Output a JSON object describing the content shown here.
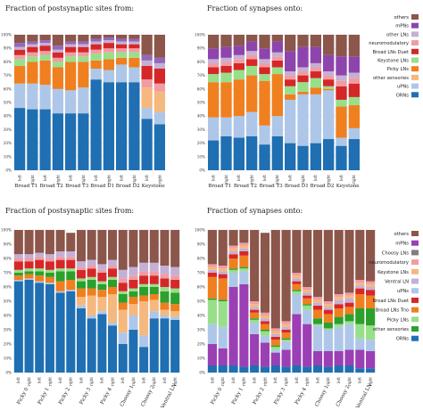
{
  "chart_data": [
    {
      "type": "bar",
      "stacked": true,
      "title": "Fraction of postsynaptic sites from:",
      "y_ticks": [
        "0%",
        "10%",
        "20%",
        "30%",
        "40%",
        "50%",
        "60%",
        "70%",
        "80%",
        "90%",
        "100%"
      ],
      "ylim": [
        0,
        100
      ],
      "groups": [
        "Broad T1",
        "Broad T2",
        "Broad T3",
        "Broad D1",
        "Broad D2",
        "Keystone"
      ],
      "bar_labels": [
        "left",
        "right",
        "left",
        "right",
        "left",
        "right",
        "left",
        "right",
        "left",
        "right",
        "left",
        "right"
      ],
      "legend": null,
      "series": [
        {
          "name": "ORNs",
          "color": "#1f6fb2",
          "values": [
            46,
            45,
            45,
            42,
            42,
            42,
            67,
            65,
            65,
            65,
            38,
            34
          ]
        },
        {
          "name": "uPNs",
          "color": "#aec7e8",
          "values": [
            18,
            19,
            18,
            18,
            17,
            19,
            8,
            9,
            13,
            11,
            8,
            9
          ]
        },
        {
          "name": "other sensories",
          "color": "#f5b87e",
          "values": [
            0,
            0,
            0,
            0,
            0,
            0,
            0,
            0,
            0,
            0,
            15,
            15
          ]
        },
        {
          "name": "Picky LNs",
          "color": "#f07f1f",
          "values": [
            13,
            16,
            18,
            16,
            21,
            19,
            6,
            8,
            5,
            7,
            0,
            0
          ]
        },
        {
          "name": "Keystone LNs",
          "color": "#98df8a",
          "values": [
            5,
            4,
            4,
            4,
            4,
            4,
            5,
            5,
            4,
            4,
            0,
            0
          ]
        },
        {
          "name": "neuromodulatory",
          "color": "#f19ca2",
          "values": [
            3,
            3,
            3,
            3,
            3,
            3,
            3,
            3,
            3,
            3,
            6,
            6
          ]
        },
        {
          "name": "Broad LNs Duet",
          "color": "#d62728",
          "values": [
            4,
            4,
            4,
            4,
            4,
            4,
            4,
            4,
            3,
            3,
            10,
            11
          ]
        },
        {
          "name": "Broad LNs Trio",
          "color": "#c5b0d5",
          "values": [
            2,
            2,
            2,
            2,
            2,
            2,
            2,
            2,
            2,
            2,
            4,
            4
          ]
        },
        {
          "name": "other LNs",
          "color": "#9467bd",
          "values": [
            3,
            2,
            2,
            3,
            2,
            2,
            2,
            2,
            2,
            2,
            4,
            4
          ]
        },
        {
          "name": "others",
          "color": "#8c564b",
          "values": [
            6,
            5,
            4,
            8,
            5,
            5,
            3,
            2,
            3,
            3,
            15,
            17
          ]
        }
      ]
    },
    {
      "type": "bar",
      "stacked": true,
      "title": "Fraction of synapses onto:",
      "y_ticks": [
        "0%",
        "10%",
        "20%",
        "30%",
        "40%",
        "50%",
        "60%",
        "70%",
        "80%",
        "90%",
        "100%"
      ],
      "ylim": [
        0,
        100
      ],
      "groups": [
        "Broad T1",
        "Broad T2",
        "Broad T3",
        "Broad D1",
        "Broad D2",
        "Keystone"
      ],
      "bar_labels": [
        "left",
        "right",
        "left",
        "right",
        "left",
        "right",
        "left",
        "right",
        "left",
        "right",
        "left",
        "right"
      ],
      "legend": [
        "others",
        "mPNs",
        "other LNs",
        "neuromodulatory",
        "Broad LNs Duet",
        "Keystone LNs",
        "Picky LNs",
        "other sensories",
        "uPNs",
        "ORNs"
      ],
      "series": [
        {
          "name": "ORNs",
          "color": "#1f6fb2",
          "values": [
            22,
            25,
            24,
            25,
            19,
            25,
            20,
            18,
            20,
            23,
            18,
            23
          ]
        },
        {
          "name": "uPNs",
          "color": "#aec7e8",
          "values": [
            17,
            14,
            16,
            18,
            14,
            15,
            32,
            38,
            36,
            36,
            6,
            8
          ]
        },
        {
          "name": "other sensories",
          "color": "#f5b87e",
          "values": [
            0,
            0,
            0,
            0,
            0,
            0,
            0,
            0,
            0,
            0,
            0,
            0
          ]
        },
        {
          "name": "Picky LNs",
          "color": "#f07f1f",
          "values": [
            26,
            26,
            27,
            27,
            33,
            31,
            4,
            2,
            5,
            1,
            23,
            17
          ]
        },
        {
          "name": "Keystone LNs",
          "color": "#98df8a",
          "values": [
            6,
            7,
            7,
            7,
            5,
            5,
            6,
            7,
            7,
            2,
            5,
            6
          ]
        },
        {
          "name": "Broad LNs Duet",
          "color": "#d62728",
          "values": [
            5,
            5,
            5,
            5,
            5,
            5,
            5,
            5,
            5,
            5,
            10,
            10
          ]
        },
        {
          "name": "neuromodulatory",
          "color": "#f19ca2",
          "values": [
            3,
            3,
            3,
            3,
            3,
            3,
            3,
            3,
            3,
            3,
            4,
            4
          ]
        },
        {
          "name": "other LNs",
          "color": "#c5b0d5",
          "values": [
            3,
            3,
            3,
            3,
            3,
            3,
            3,
            3,
            3,
            3,
            4,
            4
          ]
        },
        {
          "name": "mPNs",
          "color": "#8e44ad",
          "values": [
            8,
            8,
            7,
            7,
            8,
            8,
            15,
            15,
            12,
            12,
            14,
            12
          ]
        },
        {
          "name": "others",
          "color": "#8c564b",
          "values": [
            10,
            9,
            8,
            5,
            10,
            5,
            12,
            9,
            9,
            15,
            16,
            16
          ]
        }
      ]
    },
    {
      "type": "bar",
      "stacked": true,
      "title": "Fraction of postsynaptic sites from:",
      "y_ticks": [
        "0%",
        "10%",
        "20%",
        "30%",
        "40%",
        "50%",
        "60%",
        "70%",
        "80%",
        "90%",
        "100%"
      ],
      "ylim": [
        0,
        100
      ],
      "groups": [
        "Picky 0",
        "Picky 1",
        "Picky 2",
        "Picky 3",
        "Picky 4",
        "Choosy 1",
        "Choosy 2",
        "Ventral LN"
      ],
      "bar_labels": [
        "left",
        "right",
        "left",
        "right",
        "left",
        "right",
        "left",
        "right",
        "left",
        "right",
        "left",
        "right",
        "left",
        "right",
        "left",
        "right"
      ],
      "legend": null,
      "series": [
        {
          "name": "ORNs",
          "color": "#1f6fb2",
          "values": [
            64,
            65,
            63,
            62,
            56,
            57,
            45,
            38,
            41,
            33,
            20,
            30,
            18,
            38,
            38,
            37
          ]
        },
        {
          "name": "uPNs",
          "color": "#aec7e8",
          "values": [
            1,
            1,
            1,
            1,
            1,
            1,
            2,
            2,
            2,
            2,
            8,
            10,
            8,
            5,
            2,
            2
          ]
        },
        {
          "name": "other sensories",
          "color": "#f5b87e",
          "values": [
            0,
            0,
            0,
            0,
            0,
            0,
            6,
            14,
            10,
            20,
            16,
            8,
            24,
            8,
            4,
            4
          ]
        },
        {
          "name": "Picky LNs",
          "color": "#f07f1f",
          "values": [
            3,
            3,
            4,
            4,
            7,
            7,
            6,
            5,
            5,
            5,
            5,
            5,
            4,
            4,
            5,
            5
          ]
        },
        {
          "name": "Keystone LNs",
          "color": "#2ca02c",
          "values": [
            2,
            2,
            3,
            3,
            7,
            6,
            5,
            6,
            4,
            5,
            6,
            4,
            6,
            5,
            8,
            8
          ]
        },
        {
          "name": "neuromodulatory",
          "color": "#98df8a",
          "values": [
            2,
            2,
            2,
            2,
            2,
            2,
            2,
            2,
            2,
            2,
            2,
            2,
            2,
            2,
            3,
            3
          ]
        },
        {
          "name": "Broad LNs Duet",
          "color": "#d62728",
          "values": [
            6,
            5,
            6,
            6,
            6,
            6,
            6,
            6,
            6,
            6,
            6,
            6,
            6,
            6,
            6,
            6
          ]
        },
        {
          "name": "Broad LNs Trio",
          "color": "#f19ca2",
          "values": [
            2,
            2,
            2,
            2,
            2,
            2,
            2,
            2,
            2,
            2,
            3,
            3,
            3,
            3,
            3,
            3
          ]
        },
        {
          "name": "other LNs",
          "color": "#c5b0d5",
          "values": [
            3,
            3,
            3,
            3,
            4,
            4,
            4,
            4,
            4,
            4,
            6,
            6,
            6,
            6,
            6,
            6
          ]
        },
        {
          "name": "others",
          "color": "#8c564b",
          "values": [
            17,
            17,
            16,
            17,
            15,
            13,
            22,
            21,
            24,
            21,
            28,
            26,
            23,
            23,
            25,
            26
          ]
        }
      ]
    },
    {
      "type": "bar",
      "stacked": true,
      "title": "Fraction of synapses onto:",
      "y_ticks": [
        "0%",
        "10%",
        "20%",
        "30%",
        "40%",
        "50%",
        "60%",
        "70%",
        "80%",
        "90%",
        "100%"
      ],
      "ylim": [
        0,
        100
      ],
      "groups": [
        "Picky 0",
        "Picky 1",
        "Picky 2",
        "Picky 3",
        "Picky 4",
        "Choosy 1",
        "Choosy 2",
        "Ventral LN"
      ],
      "bar_labels": [
        "left",
        "right",
        "left",
        "right",
        "left",
        "right",
        "left",
        "right",
        "left",
        "right",
        "left",
        "right",
        "left",
        "right",
        "left",
        "right"
      ],
      "legend": [
        "others",
        "mPNs",
        "Choosy LNs",
        "neuromodulatory",
        "Keystone LNs",
        "Ventral LN",
        "uPNs",
        "Broad LNs Duet",
        "Broad LNs Trio",
        "Picky LNs",
        "other sensories",
        "ORNs"
      ],
      "series": [
        {
          "name": "ORNs",
          "color": "#1f6fb2",
          "values": [
            5,
            5,
            5,
            4,
            5,
            4,
            5,
            4,
            5,
            4,
            5,
            4,
            5,
            5,
            3,
            3
          ]
        },
        {
          "name": "mPNs",
          "color": "#9b3fb5",
          "values": [
            15,
            12,
            55,
            58,
            22,
            17,
            9,
            12,
            36,
            30,
            10,
            11,
            10,
            11,
            13,
            12
          ]
        },
        {
          "name": "uPNs",
          "color": "#aec7e8",
          "values": [
            14,
            15,
            10,
            9,
            8,
            5,
            2,
            6,
            14,
            10,
            18,
            15,
            17,
            18,
            8,
            8
          ]
        },
        {
          "name": "Picky LNs",
          "color": "#98df8a",
          "values": [
            17,
            18,
            2,
            2,
            2,
            3,
            2,
            1,
            2,
            3,
            1,
            1,
            2,
            2,
            10,
            10
          ]
        },
        {
          "name": "other sensories",
          "color": "#2ca02c",
          "values": [
            1,
            1,
            1,
            1,
            1,
            1,
            1,
            1,
            1,
            1,
            4,
            4,
            5,
            5,
            11,
            12
          ]
        },
        {
          "name": "Broad LNs Trio",
          "color": "#f07f1f",
          "values": [
            15,
            15,
            7,
            8,
            4,
            4,
            4,
            4,
            4,
            4,
            6,
            6,
            6,
            5,
            10,
            9
          ]
        },
        {
          "name": "Broad LNs Duet",
          "color": "#d62728",
          "values": [
            3,
            3,
            3,
            3,
            2,
            2,
            2,
            2,
            2,
            2,
            3,
            3,
            3,
            3,
            4,
            4
          ]
        },
        {
          "name": "Ventral LN",
          "color": "#c5b0d5",
          "values": [
            2,
            2,
            2,
            2,
            2,
            2,
            2,
            2,
            2,
            2,
            2,
            2,
            3,
            3,
            2,
            2
          ]
        },
        {
          "name": "Keystone LNs",
          "color": "#f5b87e",
          "values": [
            2,
            2,
            2,
            2,
            2,
            2,
            2,
            2,
            2,
            2,
            2,
            2,
            2,
            2,
            2,
            2
          ]
        },
        {
          "name": "neuromodulatory",
          "color": "#f19ca2",
          "values": [
            2,
            2,
            2,
            2,
            2,
            2,
            2,
            2,
            2,
            2,
            2,
            2,
            2,
            2,
            2,
            2
          ]
        },
        {
          "name": "Choosy LNs",
          "color": "#7f7f7f",
          "values": [
            0,
            0,
            0,
            0,
            0,
            0,
            0,
            0,
            0,
            0,
            0,
            0,
            0,
            0,
            0,
            0
          ]
        },
        {
          "name": "others",
          "color": "#8c564b",
          "values": [
            24,
            25,
            11,
            9,
            50,
            56,
            69,
            64,
            30,
            40,
            47,
            50,
            45,
            44,
            35,
            36
          ]
        }
      ]
    }
  ]
}
